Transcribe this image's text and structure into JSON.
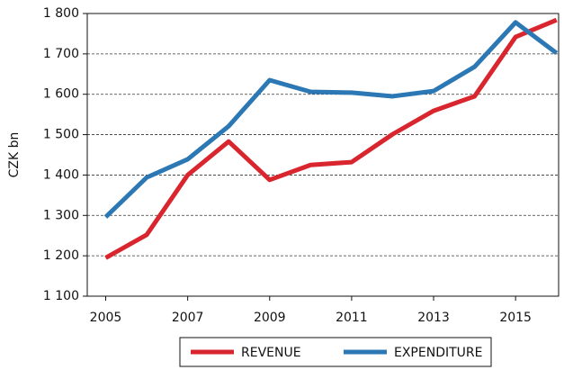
{
  "chart_data": {
    "type": "line",
    "y_label": "CZK bn",
    "x": [
      2005,
      2006,
      2007,
      2008,
      2009,
      2010,
      2011,
      2012,
      2013,
      2014,
      2015,
      2016
    ],
    "series": [
      {
        "name": "REVENUE",
        "color": "#d9262e",
        "values": [
          1195,
          1252,
          1400,
          1483,
          1388,
          1425,
          1432,
          1501,
          1559,
          1595,
          1742,
          1784
        ]
      },
      {
        "name": "EXPENDITURE",
        "color": "#2b78b4",
        "values": [
          1296,
          1394,
          1439,
          1521,
          1635,
          1606,
          1604,
          1595,
          1608,
          1668,
          1778,
          1702
        ]
      }
    ],
    "xlim": [
      2004.55,
      2016.05
    ],
    "xticks": [
      2005,
      2007,
      2009,
      2011,
      2013,
      2015
    ],
    "ylim": [
      1100,
      1800
    ],
    "yticks": [
      {
        "value": 1100,
        "label": "1 100"
      },
      {
        "value": 1200,
        "label": "1 200"
      },
      {
        "value": 1300,
        "label": "1 300"
      },
      {
        "value": 1400,
        "label": "1 400"
      },
      {
        "value": 1500,
        "label": "1 500"
      },
      {
        "value": 1600,
        "label": "1 600"
      },
      {
        "value": 1700,
        "label": "1 700"
      },
      {
        "value": 1800,
        "label": "1 800"
      }
    ],
    "grid": true,
    "legend": "bottom"
  }
}
